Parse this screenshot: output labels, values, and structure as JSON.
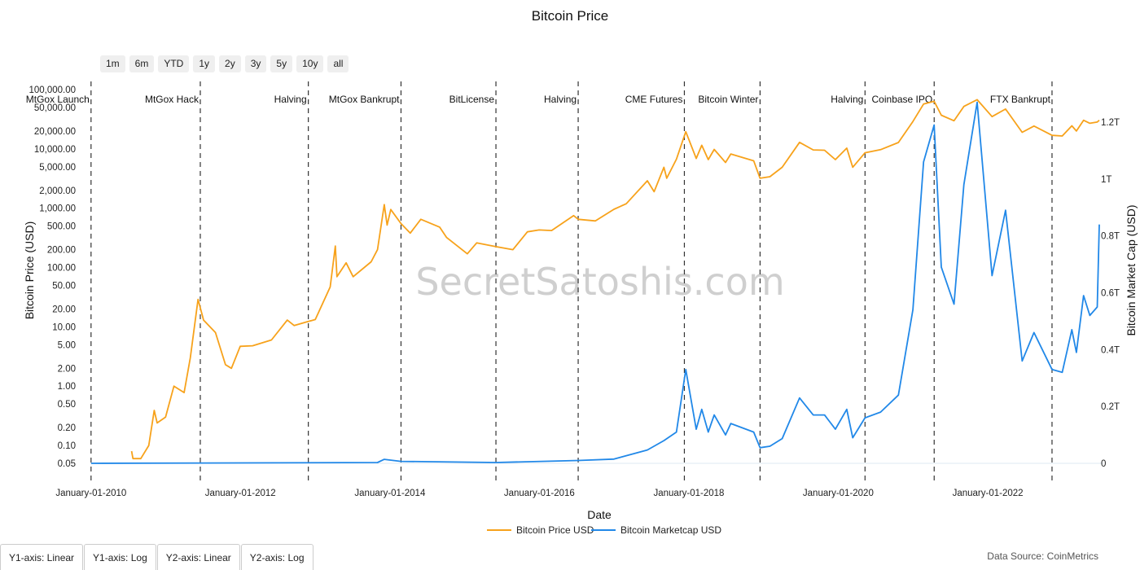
{
  "title": "Bitcoin Price",
  "range_buttons": [
    "1m",
    "6m",
    "YTD",
    "1y",
    "2y",
    "3y",
    "5y",
    "10y",
    "all"
  ],
  "scale_buttons": [
    "Y1-axis: Linear",
    "Y1-axis: Log",
    "Y2-axis: Linear",
    "Y2-axis: Log"
  ],
  "data_source": "Data Source: CoinMetrics",
  "watermark": "SecretSatoshis.com",
  "colors": {
    "price": "#f7a21b",
    "marketcap": "#2188e8",
    "event_line": "#333333"
  },
  "chart_data": {
    "type": "line",
    "title": "Bitcoin Price",
    "xlabel": "Date",
    "y1label": "Bitcoin Price (USD)",
    "y2label": "Bitcoin Market Cap (USD)",
    "y1scale": "log",
    "y2scale": "linear",
    "y1ticks": [
      100000,
      50000,
      20000,
      10000,
      5000,
      2000,
      1000,
      500,
      200,
      100,
      50,
      20,
      10,
      5,
      2,
      1,
      0.5,
      0.2,
      0.1,
      0.05
    ],
    "y1ticklabels": [
      "100,000.00",
      "50,000.00",
      "20,000.00",
      "10,000.00",
      "5,000.00",
      "2,000.00",
      "1,000.00",
      "500.00",
      "200.00",
      "100.00",
      "50.00",
      "20.00",
      "10.00",
      "5.00",
      "2.00",
      "1.00",
      "0.50",
      "0.20",
      "0.10",
      "0.05"
    ],
    "y2ticks": [
      0,
      0.2,
      0.4,
      0.6,
      0.8,
      1.0,
      1.2
    ],
    "y2ticklabels": [
      "0",
      "0.2T",
      "0.4T",
      "0.6T",
      "0.8T",
      "1T",
      "1.2T"
    ],
    "y2lim": [
      0,
      1.2
    ],
    "xticks": [
      "2010-01-01",
      "2012-01-01",
      "2014-01-01",
      "2016-01-01",
      "2018-01-01",
      "2020-01-01",
      "2022-01-01"
    ],
    "xticklabels": [
      "January-01-2010",
      "January-01-2012",
      "January-01-2014",
      "January-01-2016",
      "January-01-2018",
      "January-01-2020",
      "January-01-2022"
    ],
    "xlim": [
      "2009-11-15",
      "2023-06-30"
    ],
    "events": [
      {
        "date": "2010-01-01",
        "label": "MtGox Launch"
      },
      {
        "date": "2011-06-19",
        "label": "MtGox Hack"
      },
      {
        "date": "2012-11-28",
        "label": "Halving"
      },
      {
        "date": "2014-02-24",
        "label": "MtGox Bankrupt"
      },
      {
        "date": "2015-06-03",
        "label": "BitLicense"
      },
      {
        "date": "2016-07-09",
        "label": "Halving"
      },
      {
        "date": "2017-12-10",
        "label": "CME Futures"
      },
      {
        "date": "2018-12-15",
        "label": "Bitcoin Winter"
      },
      {
        "date": "2020-05-11",
        "label": "Halving"
      },
      {
        "date": "2021-04-14",
        "label": "Coinbase IPO"
      },
      {
        "date": "2022-11-11",
        "label": "FTX Bankrupt"
      }
    ],
    "series": [
      {
        "name": "Bitcoin Price USD",
        "axis": "y1",
        "points": [
          [
            "2010-07-18",
            0.08
          ],
          [
            "2010-07-25",
            0.06
          ],
          [
            "2010-09-01",
            0.06
          ],
          [
            "2010-10-10",
            0.1
          ],
          [
            "2010-11-06",
            0.39
          ],
          [
            "2010-11-20",
            0.24
          ],
          [
            "2010-12-31",
            0.3
          ],
          [
            "2011-02-10",
            1.0
          ],
          [
            "2011-04-01",
            0.78
          ],
          [
            "2011-05-01",
            3.0
          ],
          [
            "2011-06-08",
            29.0
          ],
          [
            "2011-07-05",
            13.0
          ],
          [
            "2011-09-01",
            8.0
          ],
          [
            "2011-10-20",
            2.3
          ],
          [
            "2011-11-18",
            2.0
          ],
          [
            "2011-12-31",
            4.7
          ],
          [
            "2012-03-01",
            4.8
          ],
          [
            "2012-06-01",
            6.0
          ],
          [
            "2012-08-17",
            13.0
          ],
          [
            "2012-09-20",
            10.5
          ],
          [
            "2012-11-28",
            12.3
          ],
          [
            "2013-01-01",
            13.3
          ],
          [
            "2013-03-15",
            47.0
          ],
          [
            "2013-04-09",
            230.0
          ],
          [
            "2013-04-17",
            70.0
          ],
          [
            "2013-06-01",
            120.0
          ],
          [
            "2013-07-05",
            70.0
          ],
          [
            "2013-10-01",
            125.0
          ],
          [
            "2013-11-01",
            200.0
          ],
          [
            "2013-12-04",
            1150.0
          ],
          [
            "2013-12-18",
            520.0
          ],
          [
            "2014-01-05",
            950.0
          ],
          [
            "2014-02-24",
            550.0
          ],
          [
            "2014-04-10",
            380.0
          ],
          [
            "2014-06-01",
            650.0
          ],
          [
            "2014-09-01",
            480.0
          ],
          [
            "2014-10-05",
            320.0
          ],
          [
            "2015-01-14",
            170.0
          ],
          [
            "2015-03-01",
            260.0
          ],
          [
            "2015-06-03",
            225.0
          ],
          [
            "2015-08-25",
            200.0
          ],
          [
            "2015-11-04",
            400.0
          ],
          [
            "2015-12-31",
            430.0
          ],
          [
            "2016-03-01",
            420.0
          ],
          [
            "2016-06-17",
            750.0
          ],
          [
            "2016-07-09",
            650.0
          ],
          [
            "2016-10-01",
            610.0
          ],
          [
            "2016-12-31",
            960.0
          ],
          [
            "2017-03-01",
            1190.0
          ],
          [
            "2017-06-12",
            2900.0
          ],
          [
            "2017-07-15",
            1900.0
          ],
          [
            "2017-09-01",
            4900.0
          ],
          [
            "2017-09-15",
            3200.0
          ],
          [
            "2017-11-01",
            6700.0
          ],
          [
            "2017-12-17",
            19500.0
          ],
          [
            "2018-02-06",
            6900.0
          ],
          [
            "2018-03-05",
            11500.0
          ],
          [
            "2018-04-06",
            6600.0
          ],
          [
            "2018-05-05",
            9800.0
          ],
          [
            "2018-06-29",
            5900.0
          ],
          [
            "2018-07-25",
            8200.0
          ],
          [
            "2018-11-14",
            6300.0
          ],
          [
            "2018-12-15",
            3200.0
          ],
          [
            "2019-02-01",
            3400.0
          ],
          [
            "2019-04-02",
            4900.0
          ],
          [
            "2019-06-26",
            12900.0
          ],
          [
            "2019-09-01",
            9600.0
          ],
          [
            "2019-10-26",
            9500.0
          ],
          [
            "2019-12-18",
            6600.0
          ],
          [
            "2020-02-12",
            10300.0
          ],
          [
            "2020-03-12",
            4900.0
          ],
          [
            "2020-05-11",
            8600.0
          ],
          [
            "2020-07-26",
            9700.0
          ],
          [
            "2020-10-21",
            12800.0
          ],
          [
            "2020-12-31",
            29000.0
          ],
          [
            "2021-02-21",
            57000.0
          ],
          [
            "2021-04-14",
            63500.0
          ],
          [
            "2021-05-19",
            37000.0
          ],
          [
            "2021-07-20",
            29800.0
          ],
          [
            "2021-09-06",
            52000.0
          ],
          [
            "2021-11-10",
            67600.0
          ],
          [
            "2022-01-22",
            35000.0
          ],
          [
            "2022-03-29",
            47000.0
          ],
          [
            "2022-06-18",
            19000.0
          ],
          [
            "2022-08-15",
            24300.0
          ],
          [
            "2022-11-11",
            16900.0
          ],
          [
            "2022-12-31",
            16500.0
          ],
          [
            "2023-02-16",
            24500.0
          ],
          [
            "2023-03-10",
            20000.0
          ],
          [
            "2023-04-14",
            30400.0
          ],
          [
            "2023-05-15",
            27000.0
          ],
          [
            "2023-06-20",
            28300.0
          ],
          [
            "2023-06-30",
            30500.0
          ]
        ]
      },
      {
        "name": "Bitcoin Marketcap USD",
        "axis": "y2",
        "points": [
          [
            "2010-01-01",
            0.0
          ],
          [
            "2013-11-01",
            0.003
          ],
          [
            "2013-12-04",
            0.014
          ],
          [
            "2014-02-24",
            0.007
          ],
          [
            "2015-06-03",
            0.003
          ],
          [
            "2016-07-09",
            0.01
          ],
          [
            "2016-12-31",
            0.015
          ],
          [
            "2017-06-12",
            0.047
          ],
          [
            "2017-09-01",
            0.08
          ],
          [
            "2017-11-01",
            0.11
          ],
          [
            "2017-12-17",
            0.33
          ],
          [
            "2018-02-06",
            0.12
          ],
          [
            "2018-03-05",
            0.19
          ],
          [
            "2018-04-06",
            0.11
          ],
          [
            "2018-05-05",
            0.17
          ],
          [
            "2018-06-29",
            0.1
          ],
          [
            "2018-07-25",
            0.14
          ],
          [
            "2018-11-14",
            0.11
          ],
          [
            "2018-12-15",
            0.055
          ],
          [
            "2019-02-01",
            0.06
          ],
          [
            "2019-04-02",
            0.087
          ],
          [
            "2019-06-26",
            0.23
          ],
          [
            "2019-09-01",
            0.17
          ],
          [
            "2019-10-26",
            0.17
          ],
          [
            "2019-12-18",
            0.12
          ],
          [
            "2020-02-12",
            0.19
          ],
          [
            "2020-03-12",
            0.09
          ],
          [
            "2020-05-11",
            0.16
          ],
          [
            "2020-07-26",
            0.18
          ],
          [
            "2020-10-21",
            0.24
          ],
          [
            "2020-12-31",
            0.54
          ],
          [
            "2021-02-21",
            1.06
          ],
          [
            "2021-04-14",
            1.19
          ],
          [
            "2021-05-19",
            0.69
          ],
          [
            "2021-07-20",
            0.56
          ],
          [
            "2021-09-06",
            0.98
          ],
          [
            "2021-11-10",
            1.27
          ],
          [
            "2022-01-22",
            0.66
          ],
          [
            "2022-03-29",
            0.89
          ],
          [
            "2022-06-18",
            0.36
          ],
          [
            "2022-08-15",
            0.46
          ],
          [
            "2022-11-11",
            0.33
          ],
          [
            "2022-12-31",
            0.32
          ],
          [
            "2023-02-16",
            0.47
          ],
          [
            "2023-03-10",
            0.39
          ],
          [
            "2023-04-14",
            0.59
          ],
          [
            "2023-05-15",
            0.52
          ],
          [
            "2023-06-20",
            0.55
          ],
          [
            "2023-06-30",
            0.84
          ]
        ]
      }
    ],
    "legend": [
      "Bitcoin Price USD",
      "Bitcoin Marketcap USD"
    ],
    "legend_position": "bottom-center",
    "grid": false
  }
}
